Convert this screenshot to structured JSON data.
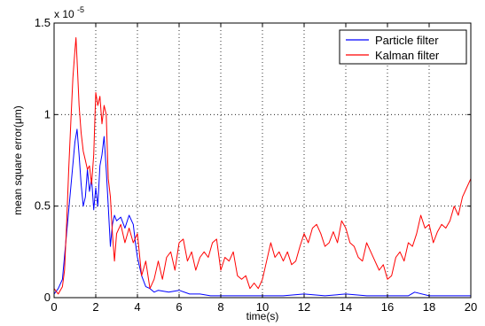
{
  "chart_data": {
    "type": "line",
    "title": "",
    "xlabel": "time(s)",
    "ylabel": "mean square error(μm)",
    "y_multiplier_label": "x 10",
    "y_multiplier_exponent": "-5",
    "xlim": [
      0,
      20
    ],
    "ylim": [
      0,
      1.5
    ],
    "x_ticks": [
      0,
      2,
      4,
      6,
      8,
      10,
      12,
      14,
      16,
      18,
      20
    ],
    "y_ticks": [
      0,
      0.5,
      1,
      1.5
    ],
    "y_tick_labels": [
      "0",
      "0.5",
      "1",
      "1.5"
    ],
    "grid": true,
    "legend_position": "top-right",
    "series": [
      {
        "name": "Particle filter",
        "color": "#0000ff",
        "x": [
          0,
          0.2,
          0.4,
          0.6,
          0.8,
          1.0,
          1.1,
          1.2,
          1.3,
          1.4,
          1.5,
          1.6,
          1.7,
          1.8,
          1.9,
          2.0,
          2.1,
          2.2,
          2.3,
          2.4,
          2.5,
          2.6,
          2.7,
          2.8,
          2.9,
          3.0,
          3.2,
          3.4,
          3.6,
          3.8,
          3.9,
          4.0,
          4.2,
          4.4,
          4.6,
          4.8,
          5.0,
          5.5,
          6.0,
          6.5,
          7.0,
          7.5,
          8.0,
          9.0,
          10.0,
          11.0,
          12.0,
          13.0,
          14.0,
          15.0,
          16.0,
          17.0,
          17.3,
          18.0,
          19.0,
          20.0
        ],
        "values": [
          0.02,
          0.05,
          0.1,
          0.35,
          0.6,
          0.85,
          0.92,
          0.78,
          0.62,
          0.5,
          0.55,
          0.7,
          0.58,
          0.65,
          0.48,
          0.6,
          0.5,
          0.72,
          0.78,
          0.88,
          0.7,
          0.5,
          0.28,
          0.4,
          0.45,
          0.42,
          0.44,
          0.38,
          0.45,
          0.4,
          0.3,
          0.22,
          0.12,
          0.06,
          0.05,
          0.03,
          0.04,
          0.03,
          0.04,
          0.02,
          0.02,
          0.01,
          0.01,
          0.01,
          0.01,
          0.01,
          0.02,
          0.01,
          0.02,
          0.01,
          0.01,
          0.01,
          0.03,
          0.01,
          0.01,
          0.01
        ]
      },
      {
        "name": "Kalman filter",
        "color": "#ff0000",
        "x": [
          0,
          0.2,
          0.4,
          0.5,
          0.6,
          0.7,
          0.8,
          0.9,
          1.0,
          1.05,
          1.1,
          1.2,
          1.3,
          1.4,
          1.5,
          1.6,
          1.7,
          1.8,
          1.9,
          2.0,
          2.1,
          2.2,
          2.3,
          2.4,
          2.5,
          2.6,
          2.7,
          2.8,
          2.9,
          3.0,
          3.2,
          3.4,
          3.6,
          3.8,
          4.0,
          4.2,
          4.4,
          4.6,
          4.8,
          5.0,
          5.2,
          5.4,
          5.6,
          5.8,
          6.0,
          6.2,
          6.4,
          6.6,
          6.8,
          7.0,
          7.2,
          7.4,
          7.6,
          7.8,
          8.0,
          8.2,
          8.4,
          8.6,
          8.8,
          9.0,
          9.2,
          9.4,
          9.6,
          9.8,
          10.0,
          10.2,
          10.4,
          10.6,
          10.8,
          11.0,
          11.2,
          11.4,
          11.6,
          11.8,
          12.0,
          12.2,
          12.4,
          12.6,
          12.8,
          13.0,
          13.2,
          13.4,
          13.6,
          13.8,
          14.0,
          14.2,
          14.4,
          14.6,
          14.8,
          15.0,
          15.2,
          15.4,
          15.6,
          15.8,
          16.0,
          16.2,
          16.4,
          16.6,
          16.8,
          17.0,
          17.2,
          17.4,
          17.6,
          17.8,
          18.0,
          18.2,
          18.4,
          18.6,
          18.8,
          19.0,
          19.2,
          19.4,
          19.6,
          19.8,
          20.0
        ],
        "values": [
          0.05,
          0.02,
          0.06,
          0.15,
          0.4,
          0.7,
          0.95,
          1.2,
          1.35,
          1.42,
          1.3,
          1.05,
          0.9,
          0.8,
          0.75,
          0.7,
          0.72,
          0.62,
          0.78,
          1.12,
          1.05,
          1.1,
          0.95,
          1.05,
          1.0,
          0.65,
          0.55,
          0.35,
          0.2,
          0.35,
          0.4,
          0.3,
          0.38,
          0.3,
          0.35,
          0.12,
          0.2,
          0.05,
          0.1,
          0.2,
          0.1,
          0.22,
          0.25,
          0.15,
          0.3,
          0.32,
          0.2,
          0.25,
          0.15,
          0.22,
          0.25,
          0.22,
          0.3,
          0.32,
          0.15,
          0.22,
          0.2,
          0.25,
          0.12,
          0.1,
          0.12,
          0.05,
          0.08,
          0.05,
          0.1,
          0.2,
          0.3,
          0.22,
          0.25,
          0.2,
          0.25,
          0.18,
          0.2,
          0.28,
          0.35,
          0.3,
          0.38,
          0.4,
          0.35,
          0.28,
          0.3,
          0.36,
          0.3,
          0.42,
          0.38,
          0.3,
          0.28,
          0.22,
          0.2,
          0.3,
          0.25,
          0.2,
          0.15,
          0.18,
          0.1,
          0.12,
          0.22,
          0.25,
          0.2,
          0.3,
          0.28,
          0.35,
          0.45,
          0.38,
          0.4,
          0.3,
          0.36,
          0.4,
          0.38,
          0.42,
          0.5,
          0.45,
          0.55,
          0.6,
          0.65
        ]
      }
    ]
  }
}
